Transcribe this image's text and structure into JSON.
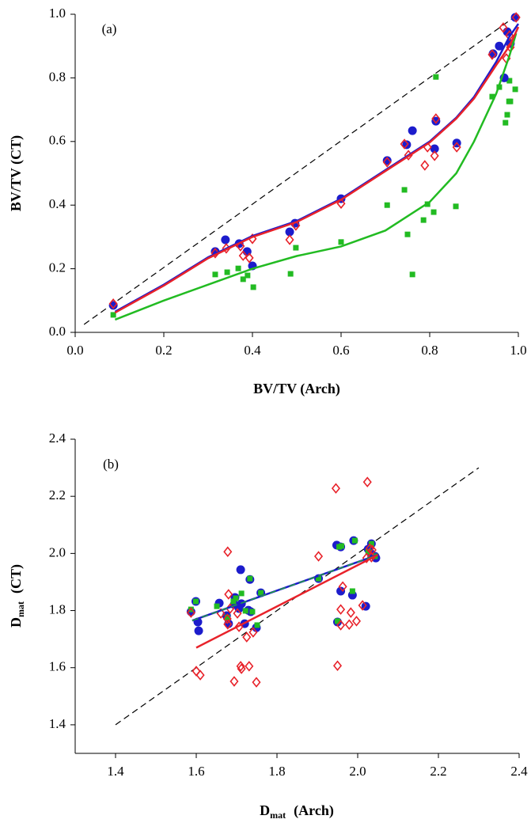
{
  "chart_data": [
    {
      "type": "scatter",
      "annotation": "(a)",
      "xlabel": "BV/TV  (Arch)",
      "ylabel": "BV/TV  (CT)",
      "xlim": [
        0,
        1
      ],
      "ylim": [
        0,
        1
      ],
      "xticks": [
        {
          "value": 0,
          "label": "0.0"
        },
        {
          "value": 0.2,
          "label": "0.2"
        },
        {
          "value": 0.4,
          "label": "0.4"
        },
        {
          "value": 0.6,
          "label": "0.6"
        },
        {
          "value": 0.8,
          "label": "0.8"
        },
        {
          "value": 1,
          "label": "1.0"
        }
      ],
      "yticks": [
        {
          "value": 0,
          "label": "0.0"
        },
        {
          "value": 0.2,
          "label": "0.2"
        },
        {
          "value": 0.4,
          "label": "0.4"
        },
        {
          "value": 0.6,
          "label": "0.6"
        },
        {
          "value": 0.8,
          "label": "0.8"
        },
        {
          "value": 1,
          "label": "1.0"
        }
      ],
      "series": [
        {
          "line": "dashed",
          "color": "#000000",
          "x": [
            0.02,
            1.0
          ],
          "values": [
            0.025,
            1.0
          ]
        },
        {
          "marker": "square",
          "color": "#22bb22",
          "x": [
            0.086,
            0.316,
            0.343,
            0.368,
            0.379,
            0.389,
            0.402,
            0.486,
            0.498,
            0.6,
            0.704,
            0.743,
            0.75,
            0.761,
            0.786,
            0.795,
            0.809,
            0.814,
            0.859,
            0.941,
            0.957,
            0.97,
            0.971,
            0.975,
            0.979,
            0.98,
            0.982,
            0.993
          ],
          "values": [
            0.055,
            0.182,
            0.189,
            0.201,
            0.167,
            0.179,
            0.142,
            0.184,
            0.266,
            0.284,
            0.4,
            0.448,
            0.308,
            0.182,
            0.353,
            0.403,
            0.378,
            0.803,
            0.396,
            0.741,
            0.771,
            0.796,
            0.659,
            0.684,
            0.726,
            0.791,
            0.726,
            0.764
          ]
        },
        {
          "marker": "circle",
          "color": "#1c1ccc",
          "x": [
            0.086,
            0.316,
            0.339,
            0.37,
            0.388,
            0.4,
            0.484,
            0.496,
            0.6,
            0.704,
            0.748,
            0.761,
            0.811,
            0.814,
            0.861,
            0.943,
            0.957,
            0.968,
            0.975,
            0.982,
            0.993
          ],
          "values": [
            0.085,
            0.254,
            0.291,
            0.279,
            0.254,
            0.209,
            0.316,
            0.343,
            0.42,
            0.54,
            0.59,
            0.634,
            0.577,
            0.664,
            0.595,
            0.876,
            0.9,
            0.8,
            0.945,
            0.908,
            0.99
          ]
        },
        {
          "marker": "diamond",
          "color": "#e8222a",
          "x": [
            0.086,
            0.316,
            0.341,
            0.373,
            0.379,
            0.393,
            0.4,
            0.484,
            0.498,
            0.6,
            0.704,
            0.743,
            0.752,
            0.789,
            0.795,
            0.811,
            0.814,
            0.861,
            0.941,
            0.966,
            0.973,
            0.98,
            0.982,
            0.995
          ],
          "values": [
            0.09,
            0.249,
            0.264,
            0.271,
            0.241,
            0.234,
            0.294,
            0.291,
            0.336,
            0.405,
            0.535,
            0.592,
            0.557,
            0.525,
            0.582,
            0.555,
            0.672,
            0.582,
            0.873,
            0.958,
            0.861,
            0.933,
            0.896,
            0.99
          ]
        },
        {
          "line": "solid",
          "color": "#22bb22",
          "x": [
            0.09,
            0.2,
            0.3,
            0.4,
            0.5,
            0.6,
            0.7,
            0.8,
            0.86,
            0.9,
            0.95,
            0.98,
            0.995
          ],
          "values": [
            0.04,
            0.1,
            0.15,
            0.2,
            0.24,
            0.27,
            0.32,
            0.41,
            0.5,
            0.6,
            0.75,
            0.87,
            0.94
          ]
        },
        {
          "line": "solid",
          "color": "#1c1ccc",
          "x": [
            0.09,
            0.2,
            0.3,
            0.4,
            0.5,
            0.6,
            0.7,
            0.8,
            0.86,
            0.9,
            0.95,
            0.98,
            1.0
          ],
          "values": [
            0.065,
            0.15,
            0.236,
            0.303,
            0.35,
            0.42,
            0.51,
            0.6,
            0.675,
            0.74,
            0.85,
            0.93,
            0.97
          ]
        },
        {
          "line": "solid",
          "color": "#e8222a",
          "x": [
            0.09,
            0.2,
            0.3,
            0.4,
            0.5,
            0.6,
            0.7,
            0.8,
            0.86,
            0.9,
            0.95,
            0.98,
            1.0
          ],
          "values": [
            0.062,
            0.147,
            0.233,
            0.3,
            0.347,
            0.417,
            0.507,
            0.597,
            0.672,
            0.735,
            0.84,
            0.9,
            0.96
          ]
        }
      ]
    },
    {
      "type": "scatter",
      "annotation": "(b)",
      "xlabel": {
        "symbol": "D",
        "subscript": "mat",
        "text": "(Arch)"
      },
      "ylabel": {
        "symbol": "D",
        "subscript": "mat",
        "text": "(CT)"
      },
      "xlim": [
        1.3,
        2.4
      ],
      "ylim": [
        1.3,
        2.4
      ],
      "xticks": [
        1.4,
        1.6,
        1.8,
        {
          "value": 2,
          "label": "2.0"
        },
        2.2,
        2.4
      ],
      "yticks": [
        1.4,
        1.6,
        1.8,
        {
          "value": 2,
          "label": "2.0"
        },
        2.2,
        2.4
      ],
      "series": [
        {
          "line": "dashed",
          "color": "#000000",
          "x": [
            1.4,
            2.3
          ],
          "values": [
            1.4,
            2.3
          ]
        },
        {
          "marker": "circle",
          "color": "#1c1ccc",
          "x": [
            1.587,
            1.599,
            1.604,
            1.606,
            1.657,
            1.675,
            1.68,
            1.694,
            1.696,
            1.706,
            1.71,
            1.712,
            1.72,
            1.729,
            1.733,
            1.735,
            1.749,
            1.76,
            1.903,
            1.948,
            1.95,
            1.958,
            1.958,
            1.987,
            1.99,
            2.02,
            2.026,
            2.032,
            2.034,
            2.043,
            2.045
          ],
          "values": [
            1.796,
            1.832,
            1.76,
            1.729,
            1.826,
            1.782,
            1.754,
            1.821,
            1.846,
            1.807,
            1.943,
            1.824,
            1.754,
            1.801,
            1.909,
            1.796,
            1.74,
            1.862,
            1.912,
            2.029,
            1.76,
            2.023,
            1.868,
            1.854,
            2.045,
            1.815,
            2.015,
            2.001,
            2.034,
            1.99,
            1.984
          ]
        },
        {
          "marker": "square",
          "color": "#22bb22",
          "x": [
            1.587,
            1.599,
            1.651,
            1.677,
            1.692,
            1.698,
            1.712,
            1.722,
            1.733,
            1.739,
            1.751,
            1.76,
            1.903,
            1.95,
            1.954,
            1.96,
            1.987,
            1.993,
            2.026,
            2.034,
            2.043
          ],
          "values": [
            1.804,
            1.832,
            1.815,
            1.776,
            1.832,
            1.843,
            1.86,
            1.799,
            1.912,
            1.796,
            1.749,
            1.862,
            1.912,
            1.763,
            2.023,
            2.026,
            1.868,
            2.045,
            2.006,
            2.034,
            1.99
          ]
        },
        {
          "marker": "diamond",
          "color": "#e8222a",
          "x": [
            1.587,
            1.6,
            1.61,
            1.661,
            1.677,
            1.678,
            1.68,
            1.684,
            1.678,
            1.694,
            1.702,
            1.706,
            1.71,
            1.712,
            1.725,
            1.731,
            1.741,
            1.749,
            1.903,
            1.946,
            1.95,
            1.958,
            1.958,
            1.963,
            1.979,
            1.983,
            1.997,
            2.012,
            2.022,
            2.024,
            2.03,
            2.036,
            2.034
          ],
          "values": [
            1.793,
            1.588,
            1.574,
            1.79,
            1.771,
            2.006,
            1.857,
            1.807,
            1.752,
            1.552,
            1.79,
            1.743,
            1.605,
            1.596,
            1.707,
            1.605,
            1.724,
            1.549,
            1.99,
            2.228,
            1.607,
            1.749,
            1.804,
            1.884,
            1.751,
            1.793,
            1.763,
            1.818,
            1.984,
            2.25,
            2.017,
            2.012,
            1.987
          ]
        },
        {
          "line": "solid",
          "color": "#1c1ccc",
          "x": [
            1.59,
            2.05
          ],
          "values": [
            1.765,
            1.995
          ]
        },
        {
          "line": "dashed",
          "color": "#22bb22",
          "x": [
            1.59,
            2.05
          ],
          "values": [
            1.765,
            1.995
          ]
        },
        {
          "line": "solid",
          "color": "#e8222a",
          "x": [
            1.6,
            2.05
          ],
          "values": [
            1.67,
            1.995
          ]
        }
      ]
    }
  ]
}
